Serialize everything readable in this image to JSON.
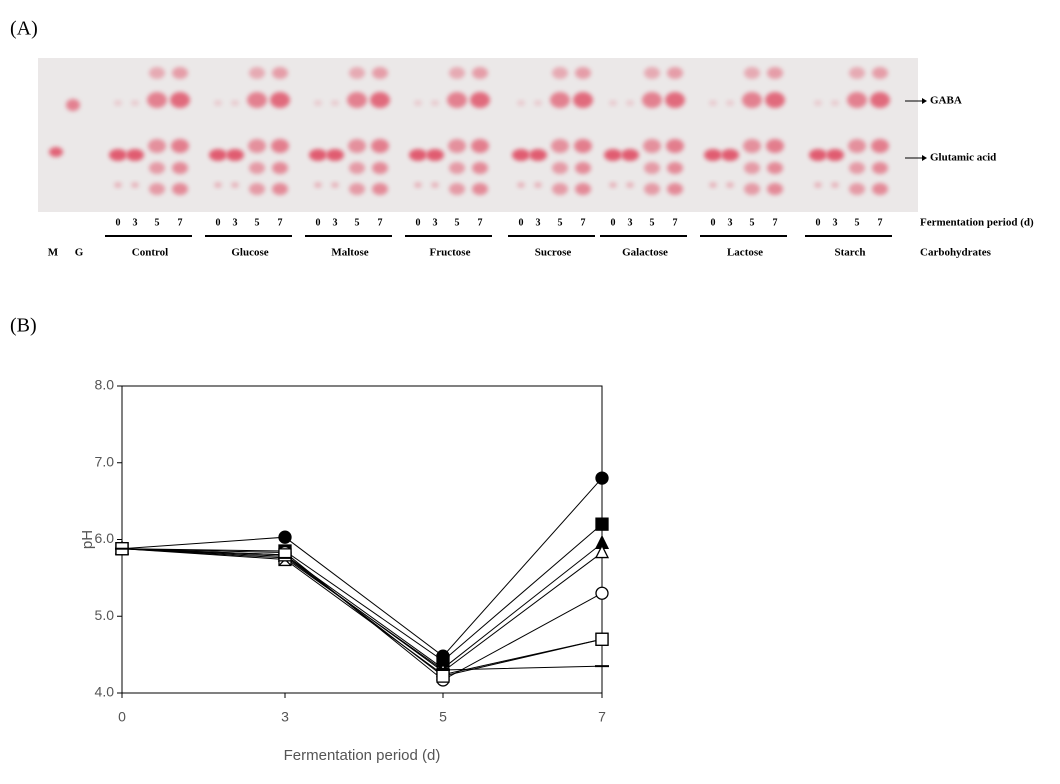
{
  "panel_a": {
    "label": "(A)",
    "marker_lanes": [
      "M",
      "G"
    ],
    "groups": [
      {
        "name": "Control",
        "days": [
          "0",
          "3",
          "5",
          "7"
        ]
      },
      {
        "name": "Glucose",
        "days": [
          "0",
          "3",
          "5",
          "7"
        ]
      },
      {
        "name": "Maltose",
        "days": [
          "0",
          "3",
          "5",
          "7"
        ]
      },
      {
        "name": "Fructose",
        "days": [
          "0",
          "3",
          "5",
          "7"
        ]
      },
      {
        "name": "Sucrose",
        "days": [
          "0",
          "3",
          "5",
          "7"
        ]
      },
      {
        "name": "Galactose",
        "days": [
          "0",
          "3",
          "5",
          "7"
        ]
      },
      {
        "name": "Lactose",
        "days": [
          "0",
          "3",
          "5",
          "7"
        ]
      },
      {
        "name": "Starch",
        "days": [
          "0",
          "3",
          "5",
          "7"
        ]
      }
    ],
    "spot_labels": [
      "GABA",
      "Glutamic acid"
    ],
    "row_labels": [
      "Fermentation period (d)",
      "Carbohydrates"
    ]
  },
  "panel_b_label": "(B)",
  "chart_data": {
    "type": "line",
    "x_label": "Fermentation period (d)",
    "y_label": "pH",
    "categories": [
      "0",
      "3",
      "5",
      "7"
    ],
    "ylim": [
      4,
      8
    ],
    "yticks": [
      {
        "value": 4,
        "label": "4.0"
      },
      {
        "value": 5,
        "label": "5.0"
      },
      {
        "value": 6,
        "label": "6.0"
      },
      {
        "value": 7,
        "label": "7.0"
      },
      {
        "value": 8,
        "label": "8.0"
      }
    ],
    "grid": false,
    "series": [
      {
        "marker": "filled-circle",
        "color": "#000000",
        "values": [
          5.88,
          6.03,
          4.48,
          6.8
        ]
      },
      {
        "marker": "filled-square",
        "color": "#000000",
        "values": [
          5.88,
          5.85,
          4.42,
          6.2
        ]
      },
      {
        "marker": "filled-triangle",
        "color": "#000000",
        "values": [
          5.88,
          5.8,
          4.32,
          5.95
        ]
      },
      {
        "marker": "open-triangle",
        "color": "#000000",
        "values": [
          5.88,
          5.78,
          4.28,
          5.83
        ]
      },
      {
        "marker": "open-circle",
        "color": "#000000",
        "values": [
          5.88,
          5.83,
          4.17,
          5.3
        ]
      },
      {
        "marker": "x-square",
        "color": "#000000",
        "values": [
          5.88,
          5.74,
          4.24,
          4.7
        ]
      },
      {
        "marker": "open-square",
        "color": "#000000",
        "values": [
          5.88,
          5.8,
          4.22,
          4.7
        ]
      },
      {
        "marker": "dash",
        "color": "#000000",
        "values": [
          5.88,
          5.76,
          4.3,
          4.35
        ]
      }
    ]
  }
}
